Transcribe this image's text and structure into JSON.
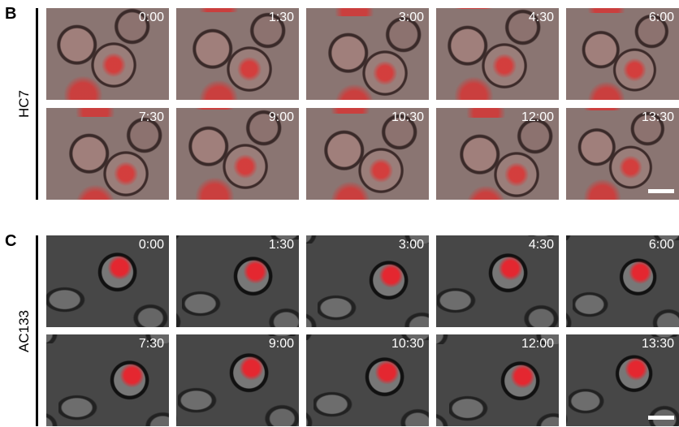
{
  "panels": [
    {
      "letter": "B",
      "label": "HC7",
      "times": [
        "0:00",
        "1:30",
        "3:00",
        "4:30",
        "6:00",
        "7:30",
        "9:00",
        "10:30",
        "12:00",
        "13:30"
      ]
    },
    {
      "letter": "C",
      "label": "AC133",
      "times": [
        "0:00",
        "1:30",
        "3:00",
        "4:30",
        "6:00",
        "7:30",
        "9:00",
        "10:30",
        "12:00",
        "13:30"
      ]
    }
  ]
}
